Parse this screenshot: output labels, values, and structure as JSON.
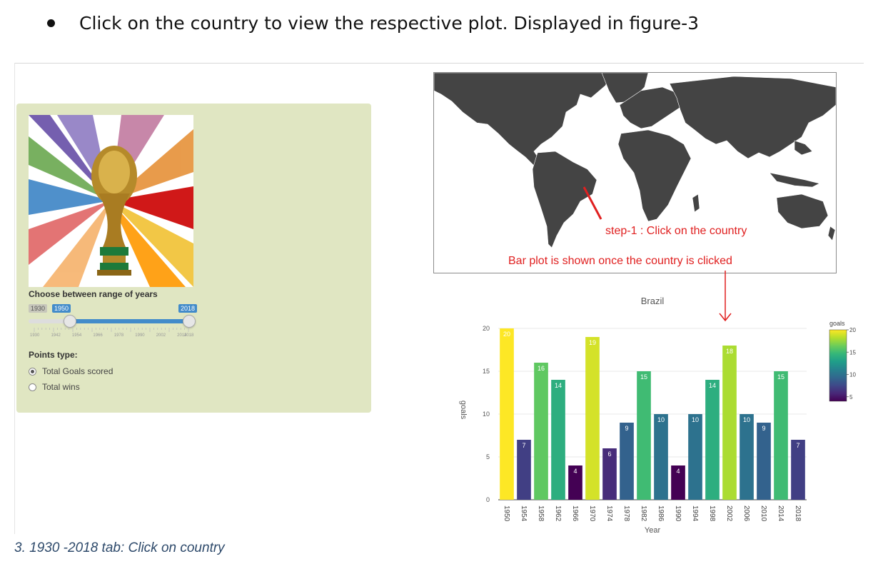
{
  "instruction": {
    "text": "Click on the country to view the respective plot. Displayed in figure-3"
  },
  "sidebar": {
    "range_label": "Choose between range of years",
    "slider": {
      "min_label": "1930",
      "from_label": "1950",
      "to_label": "2018",
      "min": 1930,
      "max": 2018,
      "from": 1950,
      "to": 2018,
      "grid_labels": [
        "1930",
        "1942",
        "1954",
        "1966",
        "1978",
        "1990",
        "2002",
        "2014",
        "2018"
      ]
    },
    "points_label": "Points type:",
    "options": [
      {
        "label": "Total Goals scored",
        "selected": true
      },
      {
        "label": "Total wins",
        "selected": false
      }
    ]
  },
  "annotations": {
    "step": "step-1 : Click on the country",
    "bar": "Bar plot is shown once the country is clicked",
    "color": "#e02020"
  },
  "chart_data": {
    "type": "bar",
    "title": "Brazil",
    "xlabel": "Year",
    "ylabel": "goals",
    "categories": [
      "1950",
      "1954",
      "1958",
      "1962",
      "1966",
      "1970",
      "1974",
      "1978",
      "1982",
      "1986",
      "1990",
      "1994",
      "1998",
      "2002",
      "2006",
      "2010",
      "2014",
      "2018"
    ],
    "values": [
      20,
      7,
      16,
      14,
      4,
      19,
      6,
      9,
      15,
      10,
      4,
      10,
      14,
      18,
      10,
      9,
      15,
      7
    ],
    "ylim": [
      0,
      21
    ],
    "yticks": [
      0,
      5,
      10,
      15,
      20
    ],
    "colorbar": {
      "title": "goals",
      "ticks": [
        5,
        10,
        15,
        20
      ]
    },
    "colorscale": "viridis",
    "grid": true
  },
  "caption": "3. 1930 -2018 tab: Click on country"
}
